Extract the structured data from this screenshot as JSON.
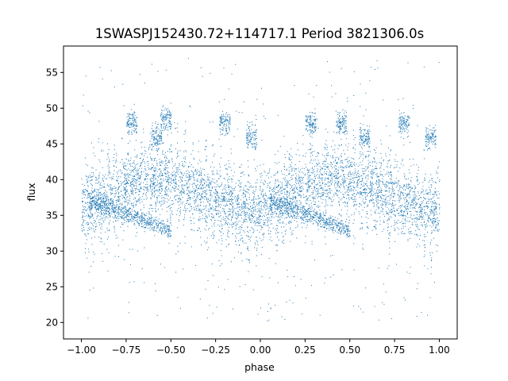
{
  "chart_data": {
    "type": "scatter",
    "title": "1SWASPJ152430.72+114717.1 Period 3821306.0s",
    "xlabel": "phase",
    "ylabel": "flux",
    "xlim": [
      -1.1,
      1.1
    ],
    "ylim": [
      17.7,
      58.7
    ],
    "xticks": [
      -1.0,
      -0.75,
      -0.5,
      -0.25,
      0.0,
      0.25,
      0.5,
      0.75,
      1.0
    ],
    "xtick_labels": [
      "−1.00",
      "−0.75",
      "−0.50",
      "−0.25",
      "0.00",
      "0.25",
      "0.50",
      "0.75",
      "1.00"
    ],
    "yticks": [
      20,
      25,
      30,
      35,
      40,
      45,
      50,
      55
    ],
    "ytick_labels": [
      "20",
      "25",
      "30",
      "35",
      "40",
      "45",
      "50",
      "55"
    ],
    "grid": false,
    "marker_color": "#1f77b4",
    "series": [
      {
        "profile": {
          "phase": [
            0.0,
            0.05,
            0.1,
            0.15,
            0.2,
            0.25,
            0.3,
            0.35,
            0.4,
            0.45,
            0.5,
            0.55,
            0.6,
            0.65,
            0.7,
            0.75,
            0.8,
            0.85,
            0.9,
            0.95,
            1.0
          ],
          "flux": [
            36.0,
            36.5,
            37.0,
            38.0,
            38.5,
            39.0,
            39.5,
            40.0,
            40.0,
            40.5,
            40.0,
            39.5,
            39.0,
            38.5,
            38.0,
            37.5,
            37.0,
            36.5,
            36.0,
            35.5,
            36.0
          ]
        },
        "clumps": [
          {
            "x": -0.72,
            "y": 48.0
          },
          {
            "x": -0.58,
            "y": 46.0
          },
          {
            "x": -0.53,
            "y": 48.5
          },
          {
            "x": -0.2,
            "y": 48.0
          },
          {
            "x": -0.05,
            "y": 46.0
          },
          {
            "x": 0.28,
            "y": 48.0
          },
          {
            "x": 0.45,
            "y": 48.0
          },
          {
            "x": 0.58,
            "y": 46.0
          },
          {
            "x": 0.8,
            "y": 48.0
          },
          {
            "x": 0.95,
            "y": 46.0
          }
        ],
        "secondary_branch": {
          "x_start": -0.95,
          "x_end": -0.5,
          "y_start": 37.0,
          "y_end": 33.0
        }
      }
    ]
  }
}
